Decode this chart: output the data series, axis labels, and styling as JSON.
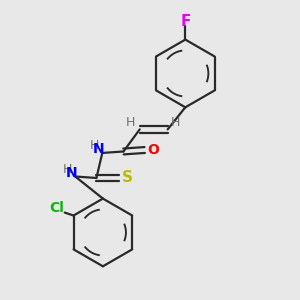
{
  "background_color": "#e8e8e8",
  "bond_color": "#2a2a2a",
  "F_color": "#ee00ee",
  "O_color": "#ff0000",
  "N_color": "#0000ff",
  "S_color": "#bbbb00",
  "Cl_color": "#00bb00",
  "H_color": "#707070",
  "figsize": [
    3.0,
    3.0
  ],
  "dpi": 100,
  "xlim": [
    0,
    10
  ],
  "ylim": [
    0,
    10
  ]
}
